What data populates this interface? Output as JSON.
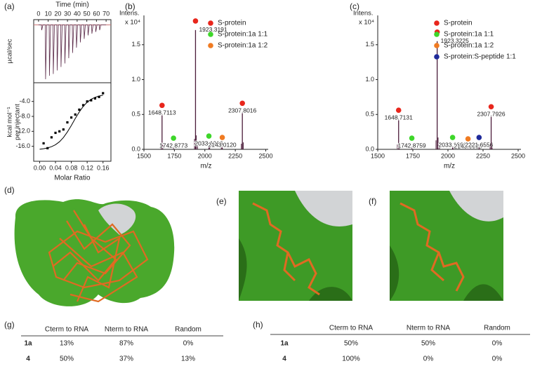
{
  "panel_labels": [
    "(a)",
    "(b)",
    "(c)",
    "(d)",
    "(e)",
    "(f)",
    "(g)",
    "(h)"
  ],
  "chart_data": [
    {
      "type": "line",
      "xlabel": "Time (min)",
      "ylabel": [
        "µcal/sec"
      ],
      "xaxis_position": "top",
      "color": "#5a2a48",
      "xlim": [
        -5,
        75
      ],
      "ylim": [
        -0.33,
        0.03
      ],
      "xticks": [
        0,
        10,
        20,
        30,
        40,
        50,
        60,
        70
      ],
      "x": [
        0,
        3,
        3.3,
        4.5,
        7,
        7.3,
        8.5,
        11,
        11.3,
        12.5,
        15,
        15.3,
        16.5,
        19,
        19.3,
        20.5,
        23,
        23.3,
        24.5,
        27,
        27.3,
        28.5,
        31,
        31.3,
        32.5,
        35,
        35.3,
        36.5,
        39,
        39.3,
        40.5,
        43,
        43.3,
        44.5,
        47,
        47.3,
        48.5,
        51,
        51.3,
        52.5,
        55,
        55.3,
        56.5,
        59,
        59.3,
        60.5,
        63,
        63.3,
        64.5,
        70
      ],
      "values": [
        0,
        0,
        -0.03,
        0,
        0,
        -0.31,
        0,
        0,
        -0.29,
        0,
        0,
        -0.28,
        0,
        0,
        -0.26,
        0,
        0,
        -0.24,
        0,
        0,
        -0.22,
        0,
        0,
        -0.19,
        0,
        0,
        -0.16,
        0,
        0,
        -0.13,
        0,
        0,
        -0.1,
        0,
        0,
        -0.08,
        0,
        0,
        -0.06,
        0,
        0,
        -0.05,
        0,
        0,
        -0.04,
        0,
        0,
        -0.03,
        0,
        0
      ]
    },
    {
      "type": "scatter",
      "xlabel": "Molar Ratio",
      "ylabel": [
        "kcal mol⁻¹",
        "per injectant"
      ],
      "color": "#000000",
      "xlim": [
        -0.015,
        0.18
      ],
      "ylim": [
        -20,
        1
      ],
      "xticks": [
        {
          "value": 0,
          "label": "0.00"
        },
        {
          "value": 0.04,
          "label": "0.04"
        },
        {
          "value": 0.08,
          "label": "0.08"
        },
        {
          "value": 0.12,
          "label": "0.12"
        },
        {
          "value": 0.16,
          "label": "0.16"
        }
      ],
      "yticks": [
        {
          "value": -16,
          "label": "-16.0"
        },
        {
          "value": -12,
          "label": "-12.0"
        },
        {
          "value": -8,
          "label": "-8.0"
        },
        {
          "value": -4,
          "label": "-4.0"
        }
      ],
      "x": [
        0.01,
        0.02,
        0.03,
        0.04,
        0.05,
        0.06,
        0.07,
        0.08,
        0.09,
        0.1,
        0.11,
        0.12,
        0.13,
        0.14,
        0.15,
        0.16
      ],
      "values": [
        -15.2,
        -16.5,
        -13.6,
        -12.4,
        -12.0,
        -11.5,
        -9.6,
        -8.3,
        -7.5,
        -6.2,
        -5.0,
        -4.0,
        -3.7,
        -3.2,
        -2.8,
        -1.8
      ],
      "fit": {
        "x": [
          0,
          0.01,
          0.02,
          0.03,
          0.04,
          0.05,
          0.06,
          0.07,
          0.08,
          0.09,
          0.1,
          0.11,
          0.12,
          0.13,
          0.14,
          0.15,
          0.16
        ],
        "values": [
          -16.79,
          -16.65,
          -16.44,
          -16.1,
          -15.57,
          -14.78,
          -13.66,
          -12.19,
          -10.43,
          -8.57,
          -6.81,
          -5.34,
          -4.22,
          -3.43,
          -2.9,
          -2.56,
          -2.34
        ]
      }
    },
    {
      "type": "bar",
      "xlabel": "m/z",
      "ylabel": [
        "Intens."
      ],
      "yscale_label": "x 10⁴",
      "color": "#4b1c3a",
      "legend_position": "upper right",
      "xlim": [
        1500,
        2520
      ],
      "ylim": [
        0,
        1.92
      ],
      "xticks": [
        1500,
        1750,
        2000,
        2250,
        2500
      ],
      "yticks": [
        {
          "value": 0,
          "label": "0.0"
        },
        {
          "value": 0.5,
          "label": "0.5"
        },
        {
          "value": 1,
          "label": "1.0"
        },
        {
          "value": 1.5,
          "label": "1.5"
        }
      ],
      "series": [
        {
          "name": "S-protein",
          "color": "#e8261c"
        },
        {
          "name": "S-protein:1a 1:1",
          "color": "#3ed62a"
        },
        {
          "name": "S-protein:1a 1:2",
          "color": "#f07b22"
        }
      ],
      "peaks": {
        "x": [
          1648.7113,
          1742.8773,
          1923.3191,
          2033.1916,
          2143.012,
          2307.8016
        ],
        "x_labels": [
          "1648.7113",
          "1742.8773",
          "1923.3191",
          "2033.1916",
          "2143.0120",
          "2307.8016"
        ],
        "values": [
          0.5,
          0.03,
          1.71,
          0.06,
          0.04,
          0.53
        ],
        "species": [
          0,
          1,
          0,
          1,
          2,
          0
        ]
      },
      "minor_peaks": {
        "x": [
          1640,
          1655,
          1915,
          1930,
          1940,
          2040,
          2135,
          2300,
          2315
        ],
        "values": [
          0.08,
          0.06,
          0.15,
          0.2,
          0.08,
          0.05,
          0.03,
          0.08,
          0.1
        ]
      }
    },
    {
      "type": "bar",
      "xlabel": "m/z",
      "ylabel": [
        "Intens."
      ],
      "yscale_label": "x 10⁴",
      "color": "#4b1c3a",
      "legend_position": "upper right",
      "xlim": [
        1500,
        2520
      ],
      "ylim": [
        0,
        1.92
      ],
      "xticks": [
        1500,
        1750,
        2000,
        2250,
        2500
      ],
      "yticks": [
        {
          "value": 0,
          "label": "0.0"
        },
        {
          "value": 0.5,
          "label": "0.5"
        },
        {
          "value": 1,
          "label": "1.0"
        },
        {
          "value": 1.5,
          "label": "1.5"
        }
      ],
      "series": [
        {
          "name": "S-protein",
          "color": "#e8261c"
        },
        {
          "name": "S-protein:1a 1:1",
          "color": "#3ed62a"
        },
        {
          "name": "S-protein:1a 1:2",
          "color": "#f07b22"
        },
        {
          "name": "S-protein:S-peptide 1:1",
          "color": "#1f2a9a"
        }
      ],
      "peaks": {
        "x": [
          1648.7131,
          1742.8759,
          1923.3225,
          2033.1888,
          2143.0088,
          2221.6556,
          2307.7926
        ],
        "x_labels": [
          "1648.7131",
          "1742.8759",
          "1923.3225",
          "2033.1888",
          "2143.0088",
          "2221.6556",
          "2307.7926"
        ],
        "values": [
          0.43,
          0.03,
          1.55,
          0.04,
          0.02,
          0.04,
          0.48
        ],
        "species": [
          0,
          1,
          0,
          1,
          2,
          3,
          0
        ]
      },
      "minor_peaks": {
        "x": [
          1640,
          1655,
          1915,
          1930,
          1940,
          2040,
          2300,
          2315
        ],
        "values": [
          0.07,
          0.05,
          0.13,
          0.17,
          0.07,
          0.04,
          0.07,
          0.09
        ]
      }
    }
  ],
  "tables": [
    {
      "columns": [
        "Cterm to RNA",
        "Nterm to RNA",
        "Random"
      ],
      "rows": [
        {
          "label": "1a",
          "cells": [
            "13%",
            "87%",
            "0%"
          ]
        },
        {
          "label": "4",
          "cells": [
            "50%",
            "37%",
            "13%"
          ]
        }
      ]
    },
    {
      "columns": [
        "Cterm to RNA",
        "Nterm to RNA",
        "Random"
      ],
      "rows": [
        {
          "label": "1a",
          "cells": [
            "50%",
            "50%",
            "0%"
          ]
        },
        {
          "label": "4",
          "cells": [
            "100%",
            "0%",
            "0%"
          ]
        }
      ]
    }
  ]
}
